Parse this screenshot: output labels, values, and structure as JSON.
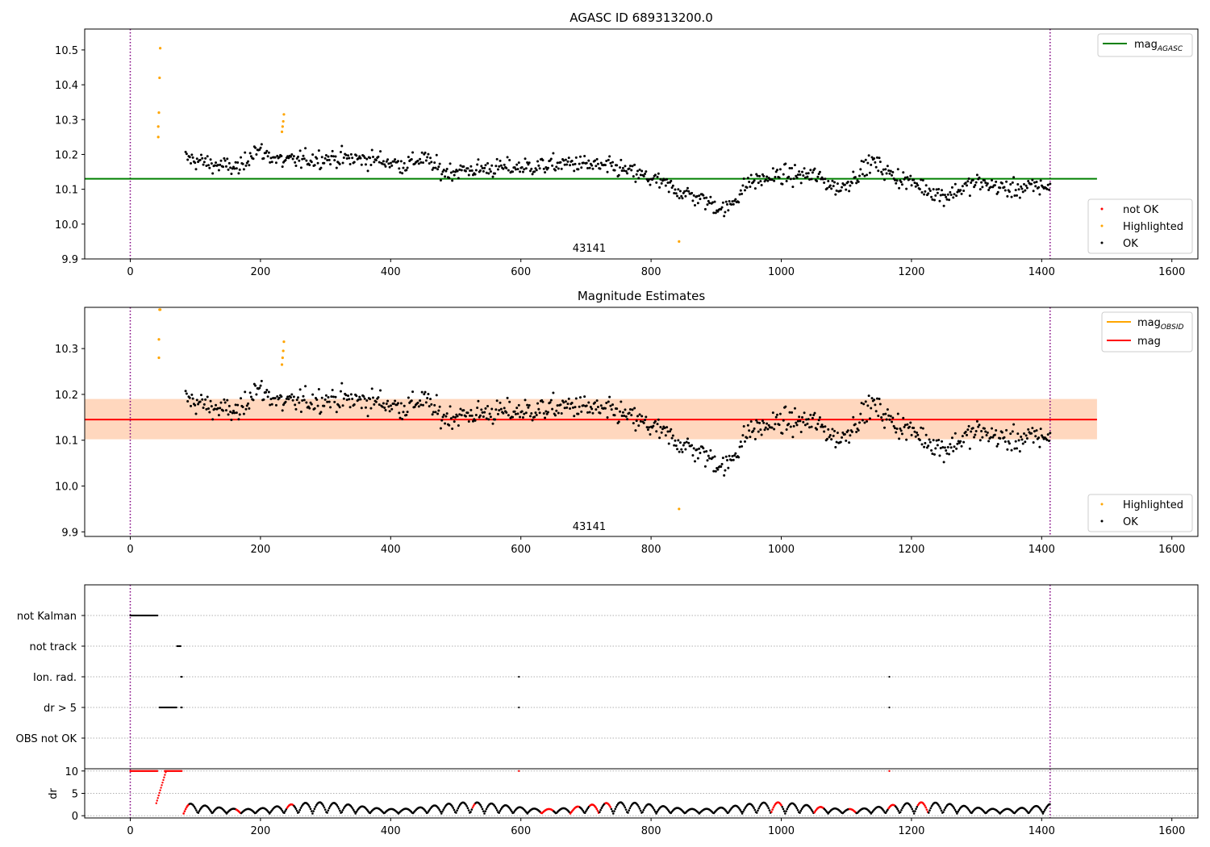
{
  "chart_data": [
    {
      "type": "scatter",
      "title": "AGASC ID 689313200.0",
      "xlim": [
        -70,
        1640
      ],
      "ylim": [
        9.9,
        10.56
      ],
      "xticks": [
        0,
        200,
        400,
        600,
        800,
        1000,
        1200,
        1400,
        1600
      ],
      "yticks": [
        9.9,
        10.0,
        10.1,
        10.2,
        10.3,
        10.4,
        10.5
      ],
      "obsid_label": "43141",
      "obsid_label_x": 705,
      "obs_boundaries": [
        0,
        1413
      ],
      "mag_agasc": 10.13,
      "line_x_range": [
        -70,
        1485
      ],
      "highlighted_points": [
        [
          43,
          10.25
        ],
        [
          43,
          10.28
        ],
        [
          44,
          10.32
        ],
        [
          45,
          10.42
        ],
        [
          46,
          10.505
        ],
        [
          233,
          10.265
        ],
        [
          234,
          10.28
        ],
        [
          235,
          10.295
        ],
        [
          236,
          10.315
        ],
        [
          843,
          9.95
        ]
      ],
      "not_ok_points": [],
      "ok_trend": [
        [
          85,
          10.19
        ],
        [
          130,
          10.17
        ],
        [
          170,
          10.16
        ],
        [
          190,
          10.215
        ],
        [
          235,
          10.18
        ],
        [
          300,
          10.19
        ],
        [
          380,
          10.185
        ],
        [
          420,
          10.17
        ],
        [
          450,
          10.19
        ],
        [
          480,
          10.15
        ],
        [
          550,
          10.16
        ],
        [
          620,
          10.165
        ],
        [
          680,
          10.175
        ],
        [
          750,
          10.16
        ],
        [
          800,
          10.13
        ],
        [
          850,
          10.09
        ],
        [
          880,
          10.07
        ],
        [
          915,
          10.04
        ],
        [
          950,
          10.12
        ],
        [
          1000,
          10.14
        ],
        [
          1050,
          10.14
        ],
        [
          1090,
          10.1
        ],
        [
          1140,
          10.18
        ],
        [
          1170,
          10.14
        ],
        [
          1200,
          10.12
        ],
        [
          1250,
          10.08
        ],
        [
          1300,
          10.12
        ],
        [
          1350,
          10.1
        ],
        [
          1413,
          10.11
        ]
      ],
      "ok_scatter_sd": 0.022,
      "ok_step": 1.6,
      "legend_top": [
        {
          "label": "mag",
          "sub": "AGASC",
          "color": "#008000"
        }
      ],
      "legend_bottom": [
        {
          "label": "not OK",
          "color": "#ff0000"
        },
        {
          "label": "Highlighted",
          "color": "#ffa500"
        },
        {
          "label": "OK",
          "color": "#000000"
        }
      ]
    },
    {
      "type": "scatter",
      "title": "Magnitude Estimates",
      "xlim": [
        -70,
        1640
      ],
      "ylim": [
        9.89,
        10.39
      ],
      "xticks": [
        0,
        200,
        400,
        600,
        800,
        1000,
        1200,
        1400,
        1600
      ],
      "yticks": [
        9.9,
        10.0,
        10.1,
        10.2,
        10.3
      ],
      "obsid_label": "43141",
      "obsid_label_x": 705,
      "obs_boundaries": [
        0,
        1413
      ],
      "mag_obsid": 10.145,
      "mag": 10.145,
      "band": [
        10.102,
        10.19
      ],
      "band_x_range": [
        -70,
        1485
      ],
      "highlighted_points": [
        [
          44,
          10.28
        ],
        [
          44,
          10.32
        ],
        [
          45,
          10.385
        ],
        [
          46,
          10.385
        ],
        [
          233,
          10.265
        ],
        [
          234,
          10.28
        ],
        [
          235,
          10.295
        ],
        [
          236,
          10.315
        ],
        [
          843,
          9.95
        ]
      ],
      "legend_top": [
        {
          "label": "mag",
          "sub": "OBSID",
          "color": "#ffa500"
        },
        {
          "label": "mag",
          "sub": "",
          "color": "#ff0000"
        }
      ],
      "legend_bottom": [
        {
          "label": "Highlighted",
          "color": "#ffa500"
        },
        {
          "label": "OK",
          "color": "#000000"
        }
      ]
    },
    {
      "type": "scatter",
      "title": "",
      "xlim": [
        -70,
        1640
      ],
      "flags": [
        "not Kalman",
        "not track",
        "Ion. rad.",
        "dr > 5",
        "OBS not OK"
      ],
      "flag_ranges": {
        "not Kalman": [
          [
            0,
            42
          ]
        ],
        "not track": [
          [
            72,
            78
          ]
        ],
        "Ion. rad.": [
          [
            78,
            80
          ],
          [
            597,
            598
          ],
          [
            1166,
            1167
          ]
        ],
        "dr > 5": [
          [
            45,
            72
          ],
          [
            78,
            80
          ],
          [
            597,
            598
          ],
          [
            1166,
            1167
          ]
        ],
        "OBS not OK": []
      },
      "obs_boundaries": [
        0,
        1413
      ]
    },
    {
      "type": "scatter",
      "title": "",
      "ylabel": "dr",
      "xlim": [
        -70,
        1640
      ],
      "ylim": [
        -0.5,
        10.5
      ],
      "xticks": [
        0,
        200,
        400,
        600,
        800,
        1000,
        1200,
        1400,
        1600
      ],
      "yticks": [
        0,
        5,
        10
      ],
      "obs_boundaries": [
        0,
        1413
      ],
      "dr_saturated_ranges": [
        [
          0,
          42
        ],
        [
          53,
          80
        ],
        [
          597,
          598
        ],
        [
          1166,
          1167
        ]
      ],
      "dr_saturated_value": 10,
      "dr_ramp": [
        [
          40,
          2.8
        ],
        [
          55,
          10
        ]
      ],
      "dr_red_segments": [
        [
          80,
          90
        ],
        [
          162,
          170
        ],
        [
          240,
          250
        ],
        [
          525,
          530
        ],
        [
          630,
          650
        ],
        [
          675,
          690
        ],
        [
          705,
          720
        ],
        [
          730,
          738
        ],
        [
          985,
          1000
        ],
        [
          1050,
          1065
        ],
        [
          1105,
          1115
        ],
        [
          1165,
          1175
        ],
        [
          1210,
          1225
        ]
      ],
      "dr_sawtooth_period": 22,
      "dr_range": [
        0.5,
        3.0
      ]
    }
  ]
}
